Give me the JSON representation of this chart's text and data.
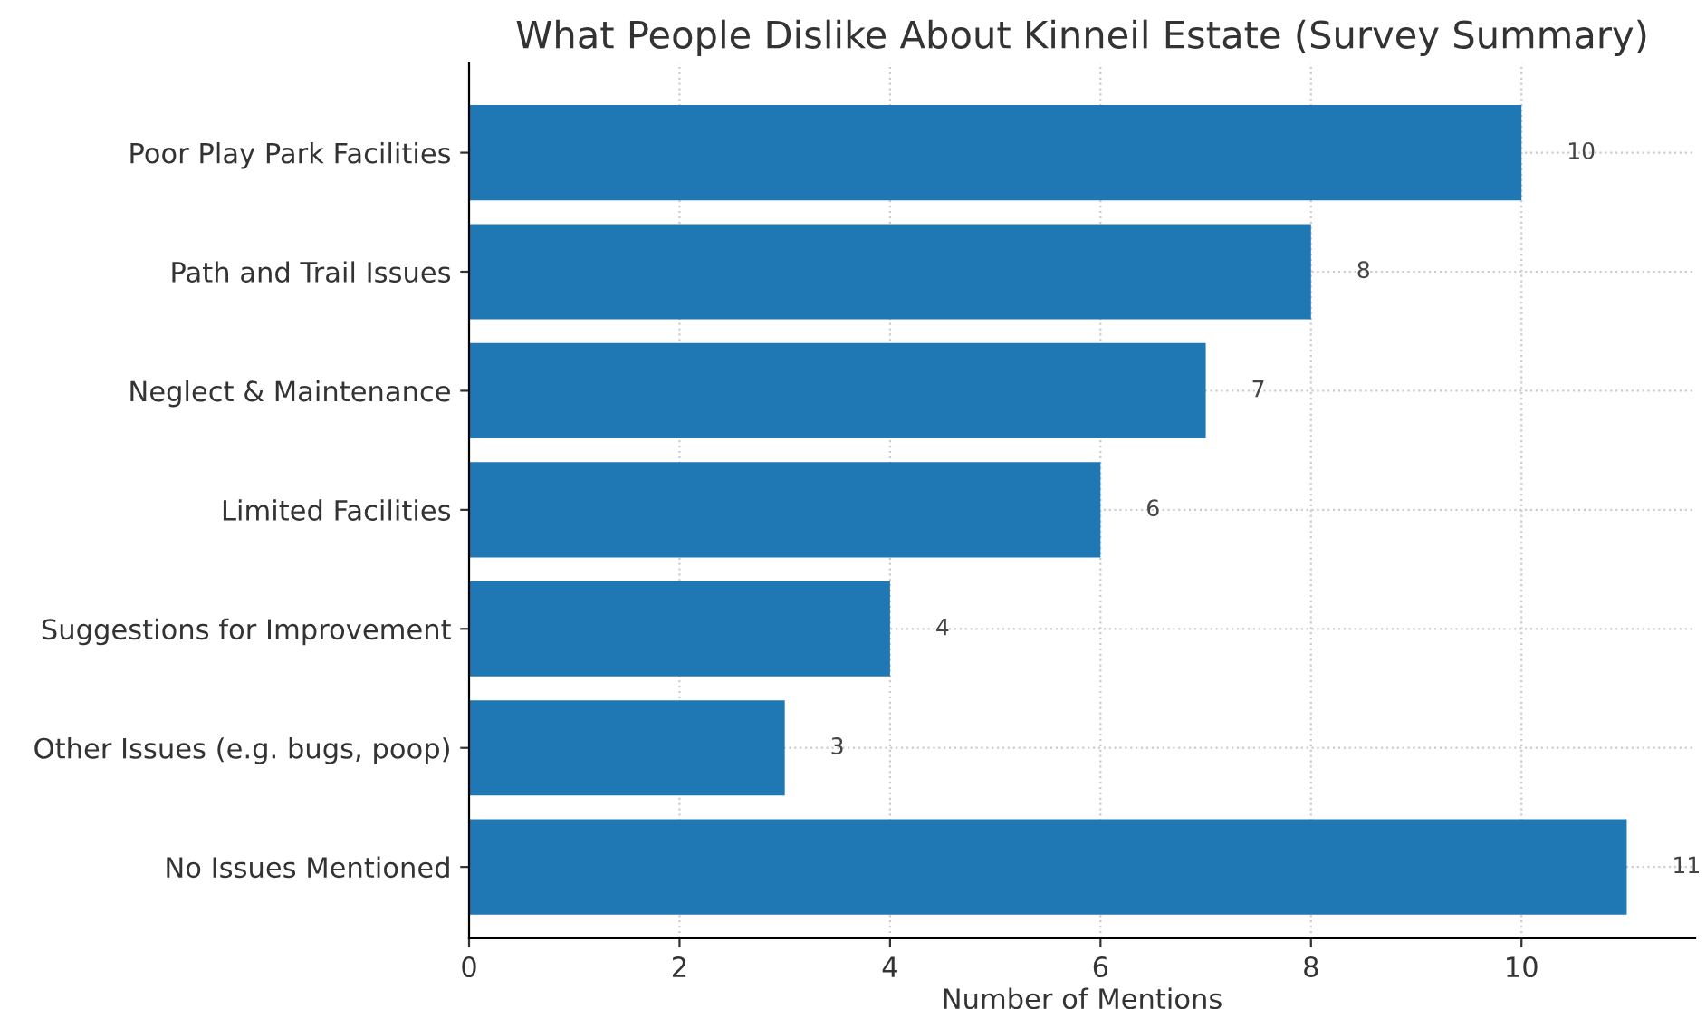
{
  "chart_data": {
    "type": "bar",
    "orientation": "horizontal",
    "title": "What People Dislike About Kinneil Estate (Survey Summary)",
    "xlabel": "Number of Mentions",
    "categories": [
      "Poor Play Park Facilities",
      "Path and Trail Issues",
      "Neglect & Maintenance",
      "Limited Facilities",
      "Suggestions for Improvement",
      "Other Issues (e.g. bugs, poop)",
      "No Issues Mentioned"
    ],
    "values": [
      10,
      8,
      7,
      6,
      4,
      3,
      11
    ],
    "color": "#1f77b4",
    "data_labels": true,
    "xlim": [
      0,
      11.65
    ],
    "xticks": [
      0,
      2,
      4,
      6,
      8,
      10
    ],
    "grid": true
  }
}
